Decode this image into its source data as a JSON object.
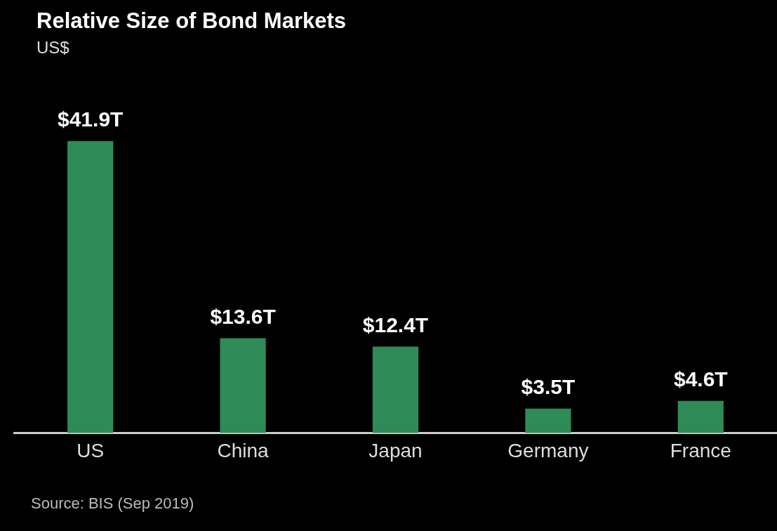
{
  "chart_data": {
    "type": "bar",
    "title": "Relative Size of Bond Markets",
    "subtitle": "US$",
    "categories": [
      "US",
      "China",
      "Japan",
      "Germany",
      "France"
    ],
    "values": [
      41.9,
      13.6,
      12.4,
      3.5,
      4.6
    ],
    "value_labels": [
      "$41.9T",
      "$13.6T",
      "$12.4T",
      "$3.5T",
      "$4.6T"
    ],
    "color": "#2e8b57",
    "legend": false,
    "annotations": [
      "Source: BIS (Sep 2019)"
    ]
  }
}
